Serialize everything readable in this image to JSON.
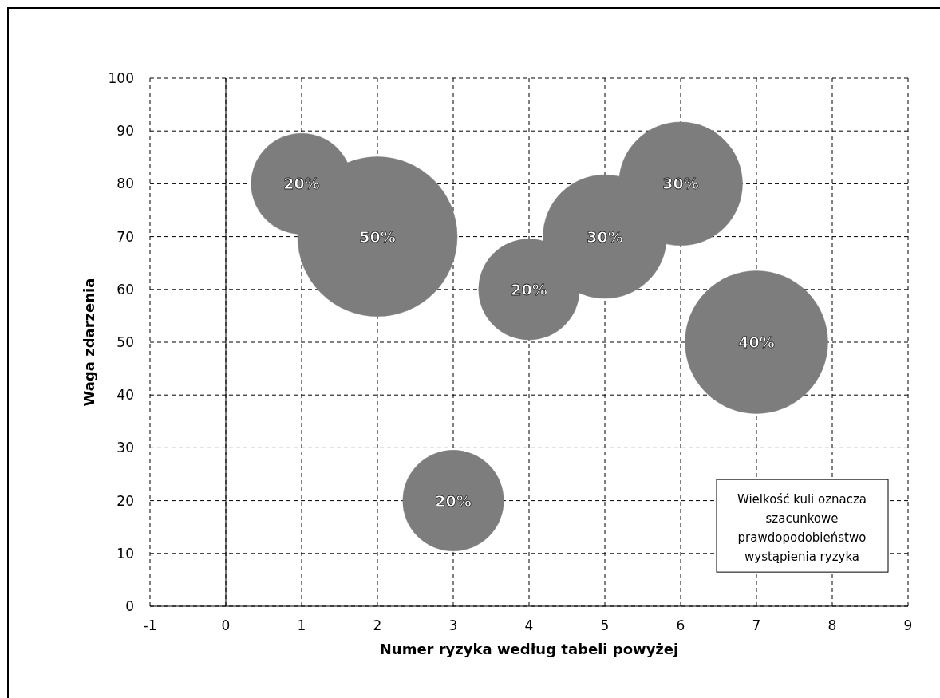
{
  "chart_data": {
    "type": "bubble",
    "xlabel": "Numer ryzyka według tabeli powyżej",
    "ylabel": "Waga zdarzenia",
    "x": [
      1,
      2,
      3,
      4,
      5,
      6,
      7
    ],
    "values": [
      80,
      70,
      20,
      60,
      70,
      80,
      50
    ],
    "sizes": [
      20,
      50,
      20,
      20,
      30,
      30,
      40
    ],
    "value_labels": [
      "20%",
      "50%",
      "20%",
      "20%",
      "30%",
      "30%",
      "40%"
    ],
    "color": "#7d7d7d",
    "xlim": [
      -1,
      9
    ],
    "xticks": [
      -1,
      0,
      1,
      2,
      3,
      4,
      5,
      6,
      7,
      8,
      9
    ],
    "ylim": [
      0,
      100
    ],
    "yticks": [
      0,
      10,
      20,
      30,
      40,
      50,
      60,
      70,
      80,
      90,
      100
    ],
    "grid": true,
    "line_style": "dashed",
    "annotations": [
      "Wielkość kuli oznacza szacunkowe prawdopodobieństwo wystąpienia ryzyka"
    ]
  }
}
